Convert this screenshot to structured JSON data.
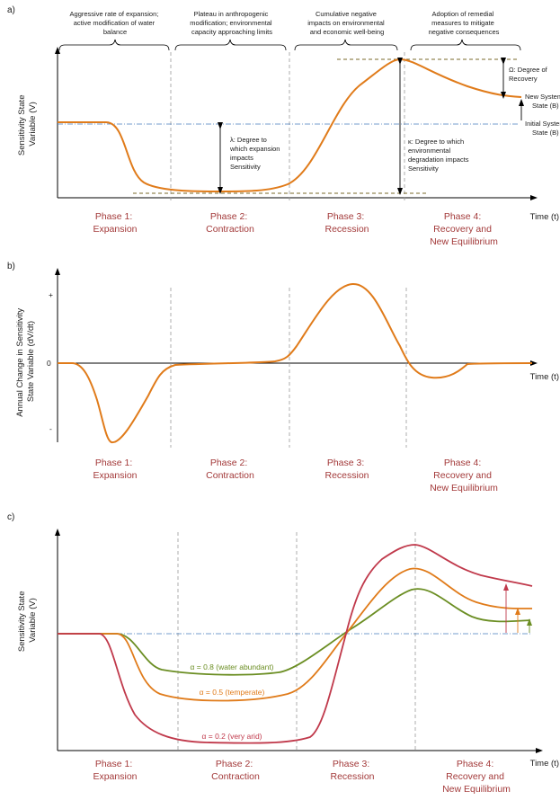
{
  "panel_a": {
    "label": "a)",
    "y_axis": [
      "Sensitivity State",
      "Variable (V)"
    ],
    "x_axis": "Time (t)",
    "headers": [
      [
        "Aggressive rate of expansion;",
        "active modification of water",
        "balance"
      ],
      [
        "Plateau in anthropogenic",
        "modification; environmental",
        "capacity approaching limits"
      ],
      [
        "Cumulative negative",
        "impacts on environmental",
        "and economic well-being"
      ],
      [
        "Adoption of remedial",
        "measures to mitigate",
        "negative consequences"
      ]
    ],
    "phases": [
      [
        "Phase 1:",
        "Expansion"
      ],
      [
        "Phase 2:",
        "Contraction"
      ],
      [
        "Phase 3:",
        "Recession"
      ],
      [
        "Phase 4:",
        "Recovery and",
        "New Equilibrium"
      ]
    ],
    "annotations": {
      "lambda": [
        "λ: Degree to",
        "which expansion",
        "impacts",
        "Sensitivity"
      ],
      "kappa": [
        "κ: Degree to which",
        "environmental",
        "degradation impacts",
        "Sensitivity"
      ],
      "omega": [
        "Ω: Degree of",
        "Recovery"
      ],
      "new_state": [
        "New System",
        "State (B)"
      ],
      "initial_state": [
        "Initial System",
        "State (B)"
      ]
    }
  },
  "panel_b": {
    "label": "b)",
    "y_axis": [
      "Annual Change in Sensitivity",
      "State Variable (dV/dt)"
    ],
    "x_axis": "Time (t)",
    "ticks": {
      "plus": "+",
      "zero": "0",
      "minus": "-"
    },
    "phases": [
      [
        "Phase 1:",
        "Expansion"
      ],
      [
        "Phase 2:",
        "Contraction"
      ],
      [
        "Phase 3:",
        "Recession"
      ],
      [
        "Phase 4:",
        "Recovery and",
        "New Equilibrium"
      ]
    ]
  },
  "panel_c": {
    "label": "c)",
    "y_axis": [
      "Sensitivity State",
      "Variable (V)"
    ],
    "x_axis": "Time (t)",
    "series": [
      {
        "name": "α = 0.8 (water abundant)",
        "color": "#6b8e23"
      },
      {
        "name": "α = 0.5 (temperate)",
        "color": "#e07b1a"
      },
      {
        "name": "α = 0.2 (very arid)",
        "color": "#c0394b"
      }
    ],
    "phases": [
      [
        "Phase 1:",
        "Expansion"
      ],
      [
        "Phase 2:",
        "Contraction"
      ],
      [
        "Phase 3:",
        "Recession"
      ],
      [
        "Phase 4:",
        "Recovery and",
        "New Equilibrium"
      ]
    ]
  },
  "colors": {
    "curve_a": "#e07b1a",
    "phase_text": "#a33a3a",
    "baseline": "#4a7fbf",
    "guide": "#8a8a8a",
    "dashed_level": "#7a6a2a"
  }
}
